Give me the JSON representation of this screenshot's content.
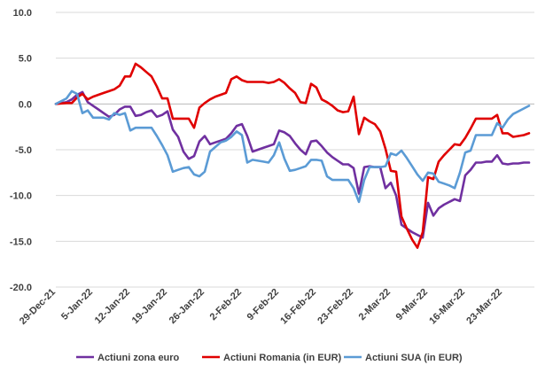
{
  "chart_data": {
    "type": "line",
    "ylim": [
      -20,
      10
    ],
    "yticks": [
      "10.0",
      "5.0",
      "0.0",
      "-5.0",
      "-10.0",
      "-15.0",
      "-20.0"
    ],
    "ytick_values": [
      10,
      5,
      0,
      -5,
      -10,
      -15,
      -20
    ],
    "xticks": [
      "29-Dec-21",
      "5-Jan-22",
      "12-Jan-22",
      "19-Jan-22",
      "26-Jan-22",
      "2-Feb-22",
      "9-Feb-22",
      "16-Feb-22",
      "23-Feb-22",
      "2-Mar-22",
      "9-Mar-22",
      "16-Mar-22",
      "23-Mar-22"
    ],
    "xtick_days": [
      0,
      7,
      14,
      21,
      28,
      35,
      42,
      49,
      56,
      63,
      70,
      77,
      84
    ],
    "xlim": [
      0,
      90
    ],
    "grid": true,
    "legend_position": "bottom",
    "series": [
      {
        "name": "Actiuni zona euro",
        "color": "#7030A0",
        "points": [
          [
            0,
            0
          ],
          [
            2,
            0.2
          ],
          [
            3,
            0.5
          ],
          [
            4,
            1.0
          ],
          [
            5,
            1.3
          ],
          [
            6,
            0.2
          ],
          [
            7,
            -0.2
          ],
          [
            8,
            -0.6
          ],
          [
            9,
            -1.0
          ],
          [
            10,
            -1.4
          ],
          [
            11,
            -1.2
          ],
          [
            12,
            -0.6
          ],
          [
            13,
            -0.3
          ],
          [
            14,
            -0.3
          ],
          [
            15,
            -1.3
          ],
          [
            16,
            -1.2
          ],
          [
            17,
            -0.9
          ],
          [
            18,
            -0.7
          ],
          [
            19,
            -1.4
          ],
          [
            20,
            -1.2
          ],
          [
            21,
            -0.8
          ],
          [
            22,
            -2.8
          ],
          [
            23,
            -3.6
          ],
          [
            24,
            -5.2
          ],
          [
            25,
            -6.0
          ],
          [
            26,
            -5.7
          ],
          [
            27,
            -4.1
          ],
          [
            28,
            -3.5
          ],
          [
            29,
            -4.4
          ],
          [
            30,
            -4.2
          ],
          [
            31,
            -4.0
          ],
          [
            32,
            -3.8
          ],
          [
            33,
            -3.2
          ],
          [
            34,
            -2.4
          ],
          [
            35,
            -2.2
          ],
          [
            36,
            -3.5
          ],
          [
            37,
            -5.2
          ],
          [
            38,
            -5.0
          ],
          [
            39,
            -4.8
          ],
          [
            40,
            -4.6
          ],
          [
            41,
            -4.4
          ],
          [
            42,
            -2.9
          ],
          [
            43,
            -3.1
          ],
          [
            44,
            -3.5
          ],
          [
            45,
            -4.3
          ],
          [
            46,
            -5.0
          ],
          [
            47,
            -5.5
          ],
          [
            48,
            -4.1
          ],
          [
            49,
            -4.0
          ],
          [
            50,
            -4.6
          ],
          [
            51,
            -5.3
          ],
          [
            52,
            -5.8
          ],
          [
            53,
            -6.2
          ],
          [
            54,
            -6.6
          ],
          [
            55,
            -6.6
          ],
          [
            56,
            -7.0
          ],
          [
            57,
            -9.8
          ],
          [
            58,
            -6.9
          ],
          [
            59,
            -6.8
          ],
          [
            60,
            -6.9
          ],
          [
            61,
            -6.9
          ],
          [
            62,
            -9.2
          ],
          [
            63,
            -8.6
          ],
          [
            64,
            -10.0
          ],
          [
            65,
            -13.2
          ],
          [
            66,
            -13.6
          ],
          [
            67,
            -14.0
          ],
          [
            68,
            -14.3
          ],
          [
            69,
            -14.6
          ],
          [
            70,
            -10.8
          ],
          [
            71,
            -12.2
          ],
          [
            72,
            -11.4
          ],
          [
            73,
            -11.0
          ],
          [
            74,
            -10.7
          ],
          [
            75,
            -10.4
          ],
          [
            76,
            -10.6
          ],
          [
            77,
            -7.8
          ],
          [
            78,
            -7.2
          ],
          [
            79,
            -6.4
          ],
          [
            80,
            -6.4
          ],
          [
            81,
            -6.3
          ],
          [
            82,
            -6.3
          ],
          [
            83,
            -5.6
          ],
          [
            84,
            -6.5
          ],
          [
            85,
            -6.6
          ],
          [
            86,
            -6.5
          ],
          [
            87,
            -6.5
          ],
          [
            88,
            -6.4
          ],
          [
            89,
            -6.4
          ]
        ]
      },
      {
        "name": "Actiuni Romania (in EUR)",
        "color": "#E00000",
        "points": [
          [
            0,
            0
          ],
          [
            2,
            0.1
          ],
          [
            3,
            0.1
          ],
          [
            4,
            0.7
          ],
          [
            5,
            1.1
          ],
          [
            6,
            0.5
          ],
          [
            7,
            0.8
          ],
          [
            8,
            1.0
          ],
          [
            9,
            1.2
          ],
          [
            10,
            1.4
          ],
          [
            11,
            1.6
          ],
          [
            12,
            2.0
          ],
          [
            13,
            3.0
          ],
          [
            14,
            3.0
          ],
          [
            15,
            4.4
          ],
          [
            16,
            4.0
          ],
          [
            17,
            3.5
          ],
          [
            18,
            3.0
          ],
          [
            19,
            1.9
          ],
          [
            20,
            0.6
          ],
          [
            21,
            0.6
          ],
          [
            22,
            -1.6
          ],
          [
            23,
            -1.6
          ],
          [
            24,
            -1.6
          ],
          [
            25,
            -1.6
          ],
          [
            26,
            -2.6
          ],
          [
            27,
            -0.4
          ],
          [
            28,
            0.1
          ],
          [
            29,
            0.5
          ],
          [
            30,
            0.8
          ],
          [
            31,
            1.0
          ],
          [
            32,
            1.2
          ],
          [
            33,
            2.7
          ],
          [
            34,
            3.0
          ],
          [
            35,
            2.6
          ],
          [
            36,
            2.4
          ],
          [
            37,
            2.4
          ],
          [
            38,
            2.4
          ],
          [
            39,
            2.4
          ],
          [
            40,
            2.3
          ],
          [
            41,
            2.4
          ],
          [
            42,
            2.7
          ],
          [
            43,
            2.3
          ],
          [
            44,
            1.7
          ],
          [
            45,
            1.2
          ],
          [
            46,
            0.2
          ],
          [
            47,
            0.1
          ],
          [
            48,
            2.2
          ],
          [
            49,
            1.8
          ],
          [
            50,
            0.5
          ],
          [
            51,
            0.2
          ],
          [
            52,
            -0.2
          ],
          [
            53,
            -0.7
          ],
          [
            54,
            -0.9
          ],
          [
            55,
            -0.8
          ],
          [
            56,
            0.8
          ],
          [
            57,
            -3.3
          ],
          [
            58,
            -1.5
          ],
          [
            59,
            -1.9
          ],
          [
            60,
            -2.2
          ],
          [
            61,
            -3.0
          ],
          [
            62,
            -4.9
          ],
          [
            63,
            -7.3
          ],
          [
            64,
            -7.4
          ],
          [
            65,
            -12.3
          ],
          [
            66,
            -13.6
          ],
          [
            67,
            -14.8
          ],
          [
            68,
            -15.7
          ],
          [
            69,
            -14.0
          ],
          [
            70,
            -8.0
          ],
          [
            71,
            -8.2
          ],
          [
            72,
            -6.3
          ],
          [
            73,
            -5.6
          ],
          [
            74,
            -5.0
          ],
          [
            75,
            -4.4
          ],
          [
            76,
            -4.5
          ],
          [
            77,
            -3.7
          ],
          [
            78,
            -2.7
          ],
          [
            79,
            -1.6
          ],
          [
            80,
            -1.6
          ],
          [
            81,
            -1.6
          ],
          [
            82,
            -1.6
          ],
          [
            83,
            -1.2
          ],
          [
            84,
            -3.2
          ],
          [
            85,
            -3.2
          ],
          [
            86,
            -3.6
          ],
          [
            87,
            -3.5
          ],
          [
            88,
            -3.4
          ],
          [
            89,
            -3.2
          ]
        ]
      },
      {
        "name": "Actiuni SUA (in EUR)",
        "color": "#5B9BD5",
        "points": [
          [
            0,
            0
          ],
          [
            2,
            0.6
          ],
          [
            3,
            1.4
          ],
          [
            4,
            1.1
          ],
          [
            5,
            -1.0
          ],
          [
            6,
            -0.7
          ],
          [
            7,
            -1.5
          ],
          [
            8,
            -1.5
          ],
          [
            9,
            -1.5
          ],
          [
            10,
            -1.7
          ],
          [
            11,
            -1.0
          ],
          [
            12,
            -1.2
          ],
          [
            13,
            -1.0
          ],
          [
            14,
            -2.9
          ],
          [
            15,
            -2.6
          ],
          [
            16,
            -2.6
          ],
          [
            17,
            -2.6
          ],
          [
            18,
            -2.6
          ],
          [
            19,
            -3.5
          ],
          [
            20,
            -4.5
          ],
          [
            21,
            -5.6
          ],
          [
            22,
            -7.4
          ],
          [
            23,
            -7.2
          ],
          [
            24,
            -7.0
          ],
          [
            25,
            -6.9
          ],
          [
            26,
            -7.7
          ],
          [
            27,
            -7.9
          ],
          [
            28,
            -7.4
          ],
          [
            29,
            -5.2
          ],
          [
            30,
            -4.7
          ],
          [
            31,
            -4.2
          ],
          [
            32,
            -4.0
          ],
          [
            33,
            -3.6
          ],
          [
            34,
            -3.0
          ],
          [
            35,
            -3.4
          ],
          [
            36,
            -6.4
          ],
          [
            37,
            -6.1
          ],
          [
            38,
            -6.2
          ],
          [
            39,
            -6.3
          ],
          [
            40,
            -6.4
          ],
          [
            41,
            -5.6
          ],
          [
            42,
            -4.2
          ],
          [
            43,
            -6.0
          ],
          [
            44,
            -7.3
          ],
          [
            45,
            -7.2
          ],
          [
            46,
            -7.0
          ],
          [
            47,
            -6.8
          ],
          [
            48,
            -6.1
          ],
          [
            49,
            -6.1
          ],
          [
            50,
            -6.2
          ],
          [
            51,
            -7.9
          ],
          [
            52,
            -8.3
          ],
          [
            53,
            -8.3
          ],
          [
            54,
            -8.3
          ],
          [
            55,
            -8.3
          ],
          [
            56,
            -9.2
          ],
          [
            57,
            -10.7
          ],
          [
            58,
            -8.3
          ],
          [
            59,
            -6.9
          ],
          [
            60,
            -6.9
          ],
          [
            61,
            -6.9
          ],
          [
            62,
            -6.8
          ],
          [
            63,
            -5.4
          ],
          [
            64,
            -5.6
          ],
          [
            65,
            -5.1
          ],
          [
            66,
            -5.9
          ],
          [
            67,
            -6.8
          ],
          [
            68,
            -7.7
          ],
          [
            69,
            -8.4
          ],
          [
            70,
            -7.5
          ],
          [
            71,
            -7.6
          ],
          [
            72,
            -8.5
          ],
          [
            73,
            -8.7
          ],
          [
            74,
            -8.9
          ],
          [
            75,
            -9.2
          ],
          [
            76,
            -7.5
          ],
          [
            77,
            -5.3
          ],
          [
            78,
            -5.1
          ],
          [
            79,
            -3.4
          ],
          [
            80,
            -3.4
          ],
          [
            81,
            -3.4
          ],
          [
            82,
            -3.4
          ],
          [
            83,
            -2.1
          ],
          [
            84,
            -2.6
          ],
          [
            85,
            -1.7
          ],
          [
            86,
            -1.1
          ],
          [
            87,
            -0.8
          ],
          [
            88,
            -0.5
          ],
          [
            89,
            -0.2
          ]
        ]
      }
    ]
  }
}
